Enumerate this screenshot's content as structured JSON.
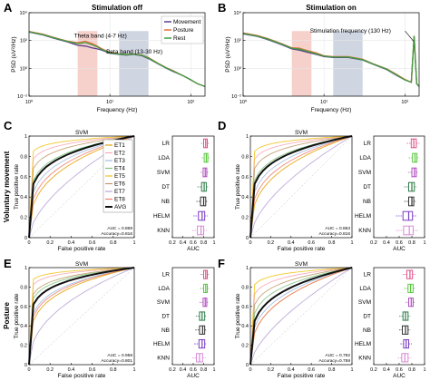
{
  "panels": {
    "A": {
      "letter": "A",
      "title": "Stimulation off"
    },
    "B": {
      "letter": "B",
      "title": "Stimulation on"
    },
    "C": {
      "letter": "C"
    },
    "D": {
      "letter": "D"
    },
    "E": {
      "letter": "E"
    },
    "F": {
      "letter": "F"
    }
  },
  "row_labels": {
    "movement": "Voluntary movement",
    "posture": "Posture"
  },
  "colors": {
    "movement": "#5b3f8e",
    "posture": "#e0703a",
    "rest": "#3f9e44",
    "theta_band": "#f6d0cb",
    "beta_band": "#cfd6e2",
    "LR": "#e0508a",
    "LDA": "#59c93f",
    "SVM": "#b04cc0",
    "DT": "#2e7d4a",
    "NB": "#333333",
    "HELM": "#7a3fc2",
    "KNN": "#d98ad8",
    "avg": "#111111"
  },
  "chart_data": [
    {
      "panel": "A",
      "type": "line",
      "title": "Stimulation off",
      "xlabel": "Frequency (Hz)",
      "ylabel": "PSD (uV²/Hz)",
      "x_scale": "log",
      "y_scale": "log",
      "xlim": [
        1,
        150
      ],
      "ylim": [
        0.01,
        10000
      ],
      "xticks": [
        "10⁰",
        "10¹",
        "10²"
      ],
      "yticks": [
        "10⁻²",
        "10⁰",
        "10²",
        "10⁴"
      ],
      "legend_position": "top-right",
      "bands": [
        {
          "label": "Theta band (4-7 Hz)",
          "range": [
            4,
            7
          ]
        },
        {
          "label": "Beta band (13-30 Hz)",
          "range": [
            13,
            30
          ]
        }
      ],
      "series": [
        {
          "name": "Movement",
          "x": [
            1,
            1.5,
            2,
            3,
            4,
            5,
            6,
            7,
            8,
            10,
            13,
            16,
            20,
            25,
            30,
            40,
            50,
            60,
            80,
            100,
            120,
            150
          ],
          "y": [
            400,
            250,
            150,
            80,
            45,
            40,
            30,
            25,
            20,
            12,
            10,
            9,
            10,
            8,
            5,
            2,
            1,
            0.6,
            0.3,
            0.15,
            0.08,
            0.05
          ]
        },
        {
          "name": "Posture",
          "x": [
            1,
            1.5,
            2,
            3,
            4,
            5,
            6,
            7,
            8,
            10,
            13,
            16,
            20,
            25,
            30,
            40,
            50,
            60,
            80,
            100,
            120,
            150
          ],
          "y": [
            450,
            280,
            170,
            90,
            70,
            90,
            60,
            40,
            25,
            14,
            11,
            10,
            11,
            9,
            6,
            2.2,
            1.1,
            0.7,
            0.3,
            0.15,
            0.08,
            0.05
          ]
        },
        {
          "name": "Rest",
          "x": [
            1,
            1.5,
            2,
            3,
            4,
            5,
            6,
            7,
            8,
            10,
            13,
            16,
            20,
            25,
            30,
            40,
            50,
            60,
            80,
            100,
            120,
            150
          ],
          "y": [
            420,
            260,
            160,
            85,
            60,
            70,
            50,
            35,
            22,
            13,
            10.5,
            9.5,
            10.5,
            8.5,
            5.5,
            2.1,
            1.05,
            0.65,
            0.3,
            0.15,
            0.08,
            0.05
          ]
        }
      ]
    },
    {
      "panel": "B",
      "type": "line",
      "title": "Stimulation on",
      "xlabel": "Frequency (Hz)",
      "ylabel": "PSD (uV²/Hz)",
      "x_scale": "log",
      "y_scale": "log",
      "xlim": [
        1,
        150
      ],
      "ylim": [
        0.01,
        10000
      ],
      "xticks": [
        "10⁰",
        "10¹",
        "10²"
      ],
      "yticks": [
        "10⁻²",
        "10⁰",
        "10²",
        "10⁴"
      ],
      "bands": [
        {
          "range": [
            4,
            7
          ]
        },
        {
          "range": [
            13,
            30
          ]
        }
      ],
      "annotations": [
        "Stimulation frequency (130 Hz)"
      ],
      "series": [
        {
          "name": "Movement",
          "x": [
            1,
            1.5,
            2,
            3,
            4,
            5,
            6,
            8,
            10,
            13,
            20,
            30,
            40,
            60,
            80,
            100,
            120,
            130,
            140,
            150
          ],
          "y": [
            300,
            200,
            120,
            50,
            25,
            20,
            15,
            10,
            7,
            6,
            6,
            4,
            2,
            0.8,
            0.3,
            0.15,
            0.1,
            200,
            0.08,
            0.05
          ]
        },
        {
          "name": "Posture",
          "x": [
            1,
            1.5,
            2,
            3,
            4,
            5,
            6,
            8,
            10,
            13,
            20,
            30,
            40,
            60,
            80,
            100,
            120,
            130,
            140,
            150
          ],
          "y": [
            350,
            230,
            140,
            60,
            30,
            28,
            20,
            13,
            8,
            7,
            7,
            4.5,
            2.2,
            0.9,
            0.35,
            0.16,
            0.1,
            220,
            0.08,
            0.05
          ]
        },
        {
          "name": "Rest",
          "x": [
            1,
            1.5,
            2,
            3,
            4,
            5,
            6,
            8,
            10,
            13,
            20,
            30,
            40,
            60,
            80,
            100,
            120,
            130,
            140,
            150
          ],
          "y": [
            320,
            210,
            130,
            55,
            28,
            24,
            18,
            11,
            7.5,
            6.5,
            6.5,
            4.2,
            2.1,
            0.85,
            0.32,
            0.15,
            0.1,
            210,
            0.08,
            0.05
          ]
        }
      ]
    },
    {
      "panel": "C",
      "type": "line",
      "title": "SVM",
      "xlabel": "False positive rate",
      "ylabel": "True positive rate",
      "xlim": [
        0,
        1
      ],
      "ylim": [
        0,
        1
      ],
      "xticks": [
        "0",
        "0.2",
        "0.4",
        "0.6",
        "0.8",
        "1"
      ],
      "yticks": [
        "0",
        "0.2",
        "0.4",
        "0.6",
        "0.8",
        "1"
      ],
      "legend_position": "right",
      "series_names": [
        "ET1",
        "ET2",
        "ET3",
        "ET4",
        "ET5",
        "ET6",
        "ET7",
        "ET8",
        "AVG"
      ],
      "curve_shapes": [
        0.35,
        0.08,
        0.25,
        0.18,
        0.05,
        0.12,
        0.6,
        0.3,
        0.2
      ],
      "annotations": [
        "AUC = 0.869",
        "Accuracy=0.816"
      ]
    },
    {
      "panel": "C",
      "type": "box",
      "xlabel": "AUC",
      "xlim": [
        0.2,
        1
      ],
      "xticks": [
        "0.2",
        "0.4",
        "0.6",
        "0.8",
        "1"
      ],
      "categories": [
        "LR",
        "LDA",
        "SVM",
        "DT",
        "NB",
        "HELM",
        "KNN"
      ],
      "boxes": [
        [
          0.75,
          0.8,
          0.84,
          0.87,
          0.9
        ],
        [
          0.76,
          0.81,
          0.85,
          0.88,
          0.91
        ],
        [
          0.74,
          0.79,
          0.83,
          0.86,
          0.89
        ],
        [
          0.68,
          0.76,
          0.81,
          0.85,
          0.9
        ],
        [
          0.66,
          0.74,
          0.8,
          0.84,
          0.88
        ],
        [
          0.6,
          0.7,
          0.77,
          0.82,
          0.88
        ],
        [
          0.58,
          0.68,
          0.75,
          0.8,
          0.86
        ]
      ]
    },
    {
      "panel": "D",
      "type": "line",
      "title": "SVM",
      "xlabel": "False positive rate",
      "ylabel": "True positive rate",
      "xlim": [
        0,
        1
      ],
      "ylim": [
        0,
        1
      ],
      "xticks": [
        "0",
        "0.2",
        "0.4",
        "0.6",
        "0.8",
        "1"
      ],
      "yticks": [
        "0",
        "0.2",
        "0.4",
        "0.6",
        "0.8",
        "1"
      ],
      "curve_shapes": [
        0.35,
        0.08,
        0.25,
        0.18,
        0.05,
        0.12,
        0.6,
        0.3,
        0.2
      ],
      "annotations": [
        "AUC = 0.863",
        "Accuracy=0.816"
      ]
    },
    {
      "panel": "D",
      "type": "box",
      "xlabel": "AUC",
      "xlim": [
        0.2,
        1
      ],
      "xticks": [
        "0.2",
        "0.4",
        "0.6",
        "0.8",
        "1"
      ],
      "categories": [
        "LR",
        "LDA",
        "SVM",
        "DT",
        "NB",
        "HELM",
        "KNN"
      ],
      "boxes": [
        [
          0.72,
          0.79,
          0.83,
          0.87,
          0.92
        ],
        [
          0.75,
          0.81,
          0.85,
          0.88,
          0.92
        ],
        [
          0.74,
          0.8,
          0.84,
          0.87,
          0.9
        ],
        [
          0.68,
          0.75,
          0.8,
          0.84,
          0.88
        ],
        [
          0.68,
          0.75,
          0.8,
          0.83,
          0.87
        ],
        [
          0.55,
          0.66,
          0.75,
          0.81,
          0.88
        ],
        [
          0.55,
          0.67,
          0.76,
          0.82,
          0.9
        ]
      ]
    },
    {
      "panel": "E",
      "type": "line",
      "title": "SVM",
      "xlabel": "False positive rate",
      "ylabel": "True positive rate",
      "xlim": [
        0,
        1
      ],
      "ylim": [
        0,
        1
      ],
      "xticks": [
        "0",
        "0.2",
        "0.4",
        "0.6",
        "0.8",
        "1"
      ],
      "yticks": [
        "0",
        "0.2",
        "0.4",
        "0.6",
        "0.8",
        "1"
      ],
      "curve_shapes": [
        0.25,
        0.06,
        0.2,
        0.12,
        0.04,
        0.1,
        0.45,
        0.22,
        0.15
      ],
      "annotations": [
        "AUC = 0.958",
        "Accuracy=0.801"
      ]
    },
    {
      "panel": "E",
      "type": "box",
      "xlabel": "AUC",
      "xlim": [
        0.2,
        1
      ],
      "xticks": [
        "0.2",
        "0.4",
        "0.6",
        "0.8",
        "1"
      ],
      "categories": [
        "LR",
        "LDA",
        "SVM",
        "DT",
        "NB",
        "HELM",
        "KNN"
      ],
      "boxes": [
        [
          0.74,
          0.8,
          0.84,
          0.87,
          0.91
        ],
        [
          0.73,
          0.8,
          0.84,
          0.87,
          0.9
        ],
        [
          0.72,
          0.79,
          0.83,
          0.86,
          0.9
        ],
        [
          0.65,
          0.72,
          0.77,
          0.82,
          0.86
        ],
        [
          0.64,
          0.72,
          0.78,
          0.82,
          0.86
        ],
        [
          0.62,
          0.71,
          0.77,
          0.82,
          0.86
        ],
        [
          0.58,
          0.66,
          0.72,
          0.78,
          0.84
        ]
      ]
    },
    {
      "panel": "F",
      "type": "line",
      "title": "SVM",
      "xlabel": "False positive rate",
      "ylabel": "True positive rate",
      "xlim": [
        0,
        1
      ],
      "ylim": [
        0,
        1
      ],
      "xticks": [
        "0",
        "0.2",
        "0.4",
        "0.6",
        "0.8",
        "1"
      ],
      "yticks": [
        "0",
        "0.2",
        "0.4",
        "0.6",
        "0.8",
        "1"
      ],
      "curve_shapes": [
        0.35,
        0.1,
        0.3,
        0.2,
        0.06,
        0.15,
        0.65,
        0.35,
        0.25
      ],
      "annotations": [
        "AUC = 0.792",
        "Accuracy=0.759"
      ]
    },
    {
      "panel": "F",
      "type": "box",
      "xlabel": "AUC",
      "xlim": [
        0.2,
        1
      ],
      "xticks": [
        "0.2",
        "0.4",
        "0.6",
        "0.8",
        "1"
      ],
      "categories": [
        "LR",
        "LDA",
        "SVM",
        "DT",
        "NB",
        "HELM",
        "KNN"
      ],
      "boxes": [
        [
          0.66,
          0.72,
          0.77,
          0.81,
          0.86
        ],
        [
          0.68,
          0.74,
          0.78,
          0.82,
          0.86
        ],
        [
          0.7,
          0.75,
          0.79,
          0.82,
          0.85
        ],
        [
          0.6,
          0.66,
          0.7,
          0.74,
          0.78
        ],
        [
          0.6,
          0.65,
          0.7,
          0.74,
          0.78
        ],
        [
          0.62,
          0.67,
          0.71,
          0.75,
          0.8
        ],
        [
          0.58,
          0.64,
          0.69,
          0.74,
          0.79
        ]
      ]
    }
  ]
}
